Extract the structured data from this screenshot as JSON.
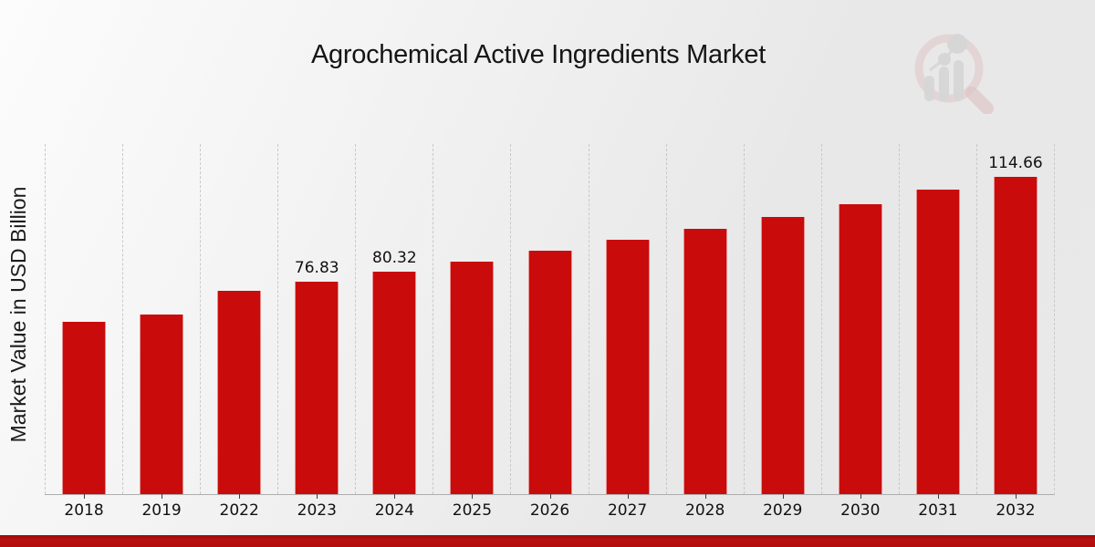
{
  "page": {
    "background_top": "#fbfbfb",
    "background_bottom": "#e8e8e8"
  },
  "watermark_logo": {
    "icon": "magnifier-bar-trend-logo",
    "ring_color": "#d8a9a9",
    "bars_color": "#c6c6c6"
  },
  "footer": {
    "band_color": "#b30d0d"
  },
  "chart_data": {
    "type": "bar",
    "title": "Agrochemical Active Ingredients Market",
    "xlabel": "",
    "ylabel": "Market Value in USD Billion",
    "categories": [
      "2018",
      "2019",
      "2022",
      "2023",
      "2024",
      "2025",
      "2026",
      "2027",
      "2028",
      "2029",
      "2030",
      "2031",
      "2032"
    ],
    "values": [
      62.2,
      64.8,
      73.6,
      76.83,
      80.32,
      84.0,
      87.9,
      91.8,
      95.9,
      100.3,
      104.9,
      109.9,
      114.66
    ],
    "value_labels": {
      "2023": "76.83",
      "2024": "80.32",
      "2032": "114.66"
    },
    "ylim": [
      0,
      126.8
    ],
    "bar_color": "#c90b0b",
    "grid": "vertical-dashed",
    "legend": "none"
  }
}
